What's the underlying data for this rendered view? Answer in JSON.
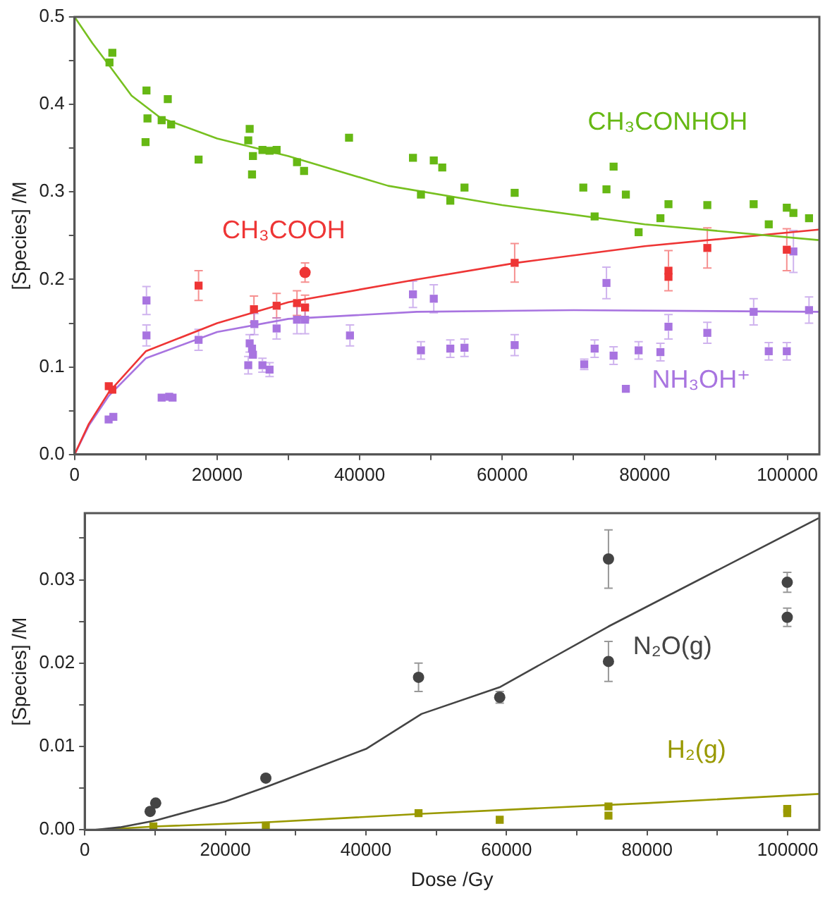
{
  "chart_data": [
    {
      "type": "scatter",
      "ylabel": "[Species] /M",
      "xlim": [
        0,
        104500
      ],
      "ylim": [
        0,
        0.5
      ],
      "xticks": [
        0,
        {
          "value": 10000,
          "label": null
        },
        20000,
        {
          "value": 30000,
          "label": null
        },
        40000,
        {
          "value": 50000,
          "label": null
        },
        60000,
        {
          "value": 70000,
          "label": null
        },
        80000,
        {
          "value": 90000,
          "label": null
        },
        100000
      ],
      "yticks": [
        {
          "value": 0,
          "label": "0.0"
        },
        {
          "value": 0.05,
          "label": null
        },
        0.1,
        {
          "value": 0.15,
          "label": null
        },
        0.2,
        {
          "value": 0.25,
          "label": null
        },
        0.3,
        {
          "value": 0.35,
          "label": null
        },
        0.4,
        {
          "value": 0.45,
          "label": null
        },
        0.5
      ],
      "series": [
        {
          "name": "CH₃CONHOH",
          "color": "#66b814",
          "marker": "square",
          "x": [
            4900,
            5300,
            10090,
            10230,
            9960,
            12220,
            13080,
            13550,
            17400,
            24370,
            24570,
            25030,
            24900,
            26360,
            27360,
            28350,
            31210,
            32200,
            38510,
            47480,
            48600,
            50400,
            51590,
            52720,
            54710,
            61750,
            71380,
            72970,
            74630,
            75630,
            77350,
            79140,
            82200,
            83330,
            88780,
            95280,
            97400,
            99930,
            100860,
            103050
          ],
          "values": [
            0.448,
            0.459,
            0.416,
            0.384,
            0.357,
            0.382,
            0.406,
            0.377,
            0.337,
            0.359,
            0.372,
            0.341,
            0.32,
            0.348,
            0.347,
            0.348,
            0.334,
            0.324,
            0.362,
            0.339,
            0.297,
            0.336,
            0.328,
            0.29,
            0.305,
            0.299,
            0.305,
            0.272,
            0.303,
            0.329,
            0.297,
            0.254,
            0.27,
            0.286,
            0.285,
            0.286,
            0.263,
            0.282,
            0.276,
            0.27
          ]
        },
        {
          "name": "CH₃COOH",
          "color": "#ee3535",
          "marker": "square",
          "x": [
            4800,
            5300,
            17400,
            25170,
            28350,
            31210,
            32340,
            61750,
            83330,
            83330,
            88780,
            99930
          ],
          "values": [
            0.078,
            0.074,
            0.193,
            0.166,
            0.17,
            0.173,
            0.168,
            0.219,
            0.21,
            0.203,
            0.236,
            0.234
          ],
          "errors": [
            null,
            null,
            0.017,
            0.015,
            0.014,
            0.014,
            0.014,
            0.022,
            0.023,
            null,
            0.023,
            0.024
          ]
        },
        {
          "color": "#ee3535",
          "marker": "circle",
          "x": [
            32340
          ],
          "values": [
            0.208
          ],
          "errors": [
            0.011
          ]
        },
        {
          "name": "NH₃OH⁺",
          "color": "#a874e0",
          "marker": "square",
          "x": [
            4780,
            5440,
            10090,
            10090,
            12220,
            13280,
            13750,
            17400,
            24370,
            24570,
            24900,
            25030,
            25230,
            26360,
            27360,
            28350,
            31210,
            32340,
            38640,
            47480,
            48600,
            50400,
            52720,
            54710,
            61750,
            71510,
            72970,
            74630,
            75630,
            77350,
            79140,
            82200,
            83330,
            88780,
            95280,
            97400,
            99930,
            100860,
            103050
          ],
          "values": [
            0.04,
            0.043,
            0.176,
            0.136,
            0.065,
            0.066,
            0.065,
            0.131,
            0.102,
            0.127,
            0.121,
            0.114,
            0.149,
            0.102,
            0.097,
            0.144,
            0.154,
            0.154,
            0.136,
            0.183,
            0.119,
            0.178,
            0.121,
            0.122,
            0.125,
            0.103,
            0.121,
            0.196,
            0.113,
            0.075,
            0.119,
            0.117,
            0.146,
            0.139,
            0.163,
            0.118,
            0.118,
            0.232,
            0.165
          ],
          "errors": [
            null,
            null,
            0.016,
            0.012,
            null,
            null,
            null,
            0.012,
            0.01,
            0.01,
            null,
            null,
            0.012,
            0.008,
            0.008,
            0.012,
            0.016,
            0.016,
            0.012,
            0.015,
            0.01,
            0.016,
            0.01,
            0.01,
            0.012,
            0.006,
            0.01,
            0.018,
            0.01,
            null,
            0.01,
            0.01,
            0.014,
            0.012,
            0.015,
            0.01,
            0.01,
            0.024,
            0.015
          ]
        },
        {
          "type": "line",
          "color": "#77c020",
          "x": [
            0,
            2500,
            5000,
            8000,
            12000,
            20000,
            30000,
            44000,
            60000,
            80000,
            104400
          ],
          "values": [
            0.5,
            0.47,
            0.443,
            0.41,
            0.385,
            0.361,
            0.341,
            0.307,
            0.285,
            0.263,
            0.245
          ]
        },
        {
          "type": "line",
          "color": "#ee3535",
          "x": [
            0,
            2000,
            4800,
            10000,
            20000,
            30000,
            48000,
            62000,
            80000,
            104400
          ],
          "values": [
            0,
            0.035,
            0.071,
            0.118,
            0.15,
            0.174,
            0.2,
            0.219,
            0.238,
            0.257
          ]
        },
        {
          "type": "line",
          "color": "#a874e0",
          "x": [
            0,
            2000,
            4800,
            10000,
            20000,
            30000,
            48000,
            70000,
            104400
          ],
          "values": [
            0,
            0.033,
            0.067,
            0.11,
            0.14,
            0.155,
            0.163,
            0.165,
            0.163
          ]
        }
      ]
    },
    {
      "type": "scatter",
      "xlabel": "Dose /Gy",
      "ylabel": "[Species] /M",
      "xlim": [
        0,
        104500
      ],
      "ylim": [
        0,
        0.038
      ],
      "xticks": [
        0,
        {
          "value": 10000,
          "label": null
        },
        20000,
        {
          "value": 30000,
          "label": null
        },
        40000,
        {
          "value": 50000,
          "label": null
        },
        60000,
        {
          "value": 70000,
          "label": null
        },
        80000,
        {
          "value": 90000,
          "label": null
        },
        100000
      ],
      "yticks": [
        {
          "value": 0,
          "label": "0.00"
        },
        {
          "value": 0.005,
          "label": null
        },
        {
          "value": 0.01,
          "label": "0.01"
        },
        {
          "value": 0.015,
          "label": null
        },
        {
          "value": 0.02,
          "label": "0.02"
        },
        {
          "value": 0.025,
          "label": null
        },
        {
          "value": 0.03,
          "label": "0.03"
        },
        {
          "value": 0.035,
          "label": null
        }
      ],
      "series": [
        {
          "name": "N₂O(g)",
          "color": "#444444",
          "marker": "circle",
          "x": [
            9300,
            10090,
            25760,
            47480,
            59030,
            74500,
            74500,
            99930,
            99930
          ],
          "values": [
            0.0022,
            0.0032,
            0.0062,
            0.0183,
            0.0159,
            0.0325,
            0.0202,
            0.0297,
            0.0255
          ],
          "errors": [
            null,
            null,
            null,
            0.0017,
            0.0007,
            0.0035,
            0.0024,
            0.0012,
            0.0011
          ]
        },
        {
          "name": "H₂(g)",
          "color": "#999900",
          "marker": "square",
          "x": [
            9760,
            25760,
            47480,
            59030,
            74500,
            74500,
            99930,
            99930
          ],
          "values": [
            0.0004,
            0.0005,
            0.002,
            0.0012,
            0.0028,
            0.0017,
            0.0025,
            0.002
          ]
        },
        {
          "type": "line",
          "color": "#444444",
          "x": [
            1500,
            5000,
            10000,
            20000,
            26000,
            40000,
            47900,
            59000,
            74500,
            104400
          ],
          "values": [
            0,
            0.0003,
            0.0011,
            0.0034,
            0.0052,
            0.0097,
            0.0139,
            0.0171,
            0.0244,
            0.0374
          ]
        },
        {
          "type": "line",
          "color": "#999900",
          "x": [
            2000,
            10000,
            26000,
            47500,
            60000,
            80000,
            104400
          ],
          "values": [
            0,
            0.0004,
            0.0009,
            0.0019,
            0.0024,
            0.0032,
            0.0043
          ]
        }
      ]
    }
  ]
}
